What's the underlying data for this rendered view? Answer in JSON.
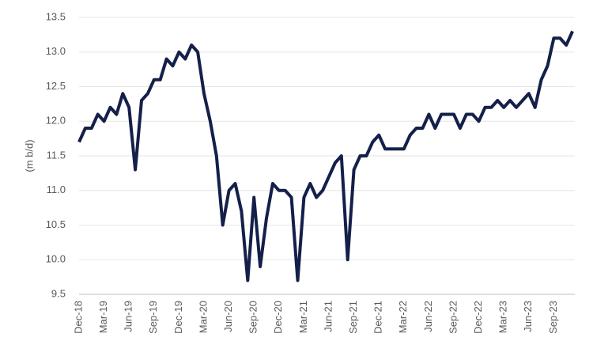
{
  "chart_data": {
    "type": "line",
    "y_label": "(m b/d)",
    "categories": [
      "Dec-18",
      null,
      null,
      null,
      "Mar-19",
      null,
      null,
      null,
      "Jun-19",
      null,
      null,
      null,
      "Sep-19",
      null,
      null,
      null,
      "Dec-19",
      null,
      null,
      null,
      "Mar-20",
      null,
      null,
      null,
      "Jun-20",
      null,
      null,
      null,
      "Sep-20",
      null,
      null,
      null,
      "Dec-20",
      null,
      null,
      null,
      "Mar-21",
      null,
      null,
      null,
      "Jun-21",
      null,
      null,
      null,
      "Sep-21",
      null,
      null,
      null,
      "Dec-21",
      null,
      null,
      null,
      "Mar-22",
      null,
      null,
      null,
      "Jun-22",
      null,
      null,
      null,
      "Sep-22",
      null,
      null,
      null,
      "Dec-22",
      null,
      null,
      null,
      "Mar-23",
      null,
      null,
      null,
      "Jun-23",
      null,
      null,
      null,
      "Sep-23",
      null,
      null,
      null
    ],
    "values": [
      11.7,
      11.9,
      11.9,
      12.1,
      12.0,
      12.2,
      12.1,
      12.4,
      12.2,
      11.3,
      12.3,
      12.4,
      12.6,
      12.6,
      12.9,
      12.8,
      13.0,
      12.9,
      13.1,
      13.0,
      12.4,
      12.0,
      11.5,
      10.5,
      11.0,
      11.1,
      10.7,
      9.7,
      10.9,
      9.9,
      10.6,
      11.1,
      11.0,
      11.0,
      10.9,
      9.7,
      10.9,
      11.1,
      10.9,
      11.0,
      11.2,
      11.4,
      11.5,
      10.0,
      11.3,
      11.5,
      11.5,
      11.7,
      11.8,
      11.6,
      11.6,
      11.6,
      11.6,
      11.8,
      11.9,
      11.9,
      12.1,
      11.9,
      12.1,
      12.1,
      12.1,
      11.9,
      12.1,
      12.1,
      12.0,
      12.2,
      12.2,
      12.3,
      12.2,
      12.3,
      12.2,
      12.3,
      12.4,
      12.2,
      12.6,
      12.8,
      13.2,
      13.2,
      13.1,
      13.3
    ],
    "color": "#14204a",
    "ylim": [
      9.5,
      13.5
    ],
    "yticks": [
      9.5,
      {
        "value": 10,
        "label": "10.0"
      },
      10.5,
      {
        "value": 11,
        "label": "11.0"
      },
      11.5,
      {
        "value": 12,
        "label": "12.0"
      },
      12.5,
      {
        "value": 13,
        "label": "13.0"
      },
      13.5
    ],
    "grid": true
  }
}
